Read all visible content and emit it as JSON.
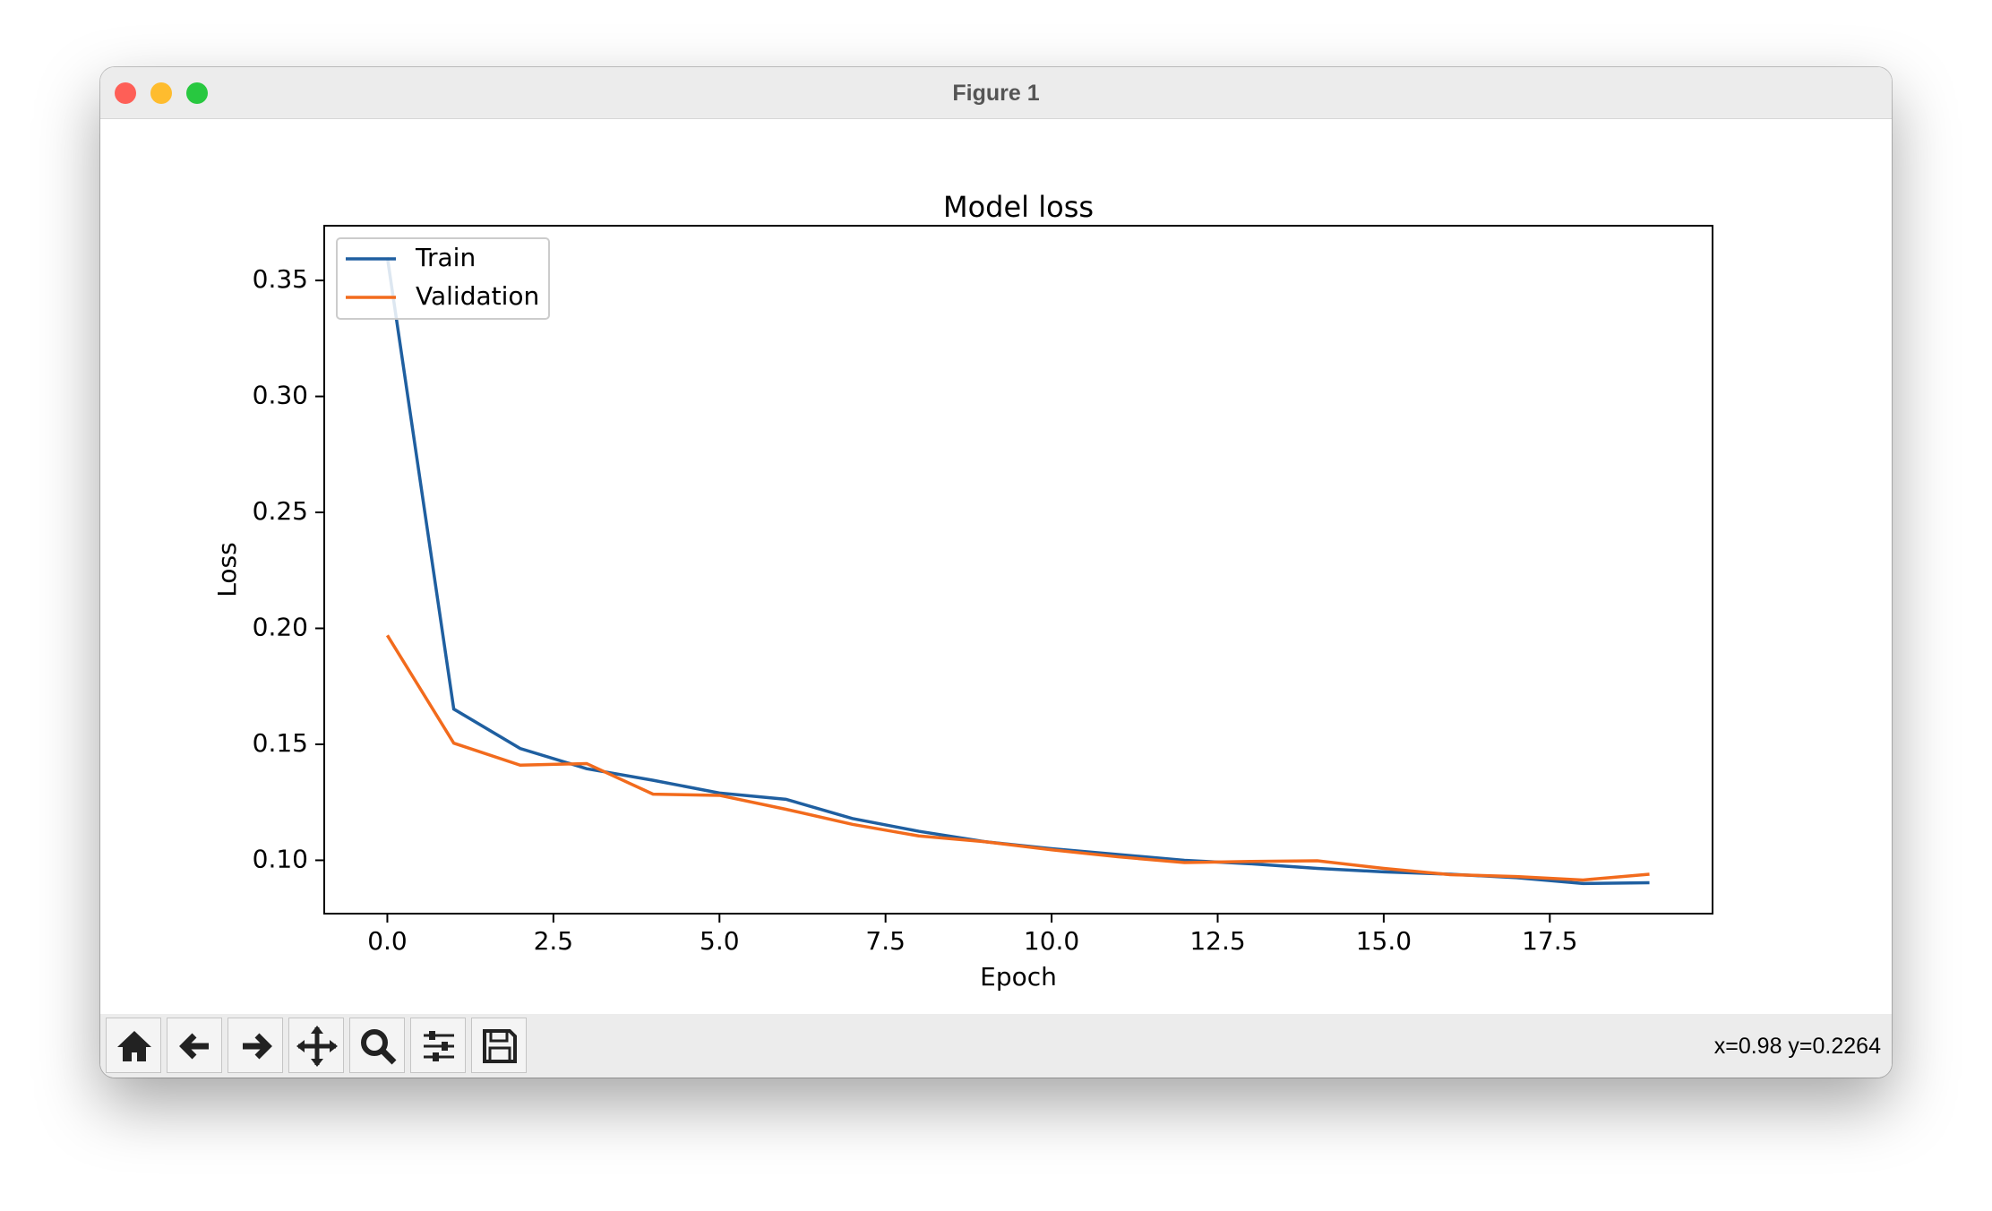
{
  "window": {
    "title": "Figure 1",
    "status": "x=0.98 y=0.2264"
  },
  "chart_data": {
    "type": "line",
    "title": "Model loss",
    "x_label": "Epoch",
    "y_label": "Loss",
    "x": [
      0,
      1,
      2,
      3,
      4,
      5,
      6,
      7,
      8,
      9,
      10,
      11,
      12,
      13,
      14,
      15,
      16,
      17,
      18,
      19
    ],
    "series": [
      {
        "name": "Train",
        "color": "#1f5fa0",
        "values": [
          0.36,
          0.1652,
          0.1482,
          0.1395,
          0.1345,
          0.129,
          0.1263,
          0.118,
          0.1125,
          0.108,
          0.105,
          0.1025,
          0.1,
          0.0985,
          0.0965,
          0.095,
          0.094,
          0.0925,
          0.09,
          0.0903
        ]
      },
      {
        "name": "Validation",
        "color": "#f26b1d",
        "values": [
          0.197,
          0.1505,
          0.141,
          0.1417,
          0.1285,
          0.128,
          0.122,
          0.1155,
          0.1105,
          0.108,
          0.1045,
          0.1015,
          0.099,
          0.0995,
          0.0998,
          0.0965,
          0.0938,
          0.093,
          0.0915,
          0.094
        ]
      }
    ],
    "xlim": [
      -0.95,
      19.95
    ],
    "ylim": [
      0.077,
      0.3736
    ],
    "xticks": [
      {
        "value": 0,
        "label": "0.0"
      },
      2.5,
      {
        "value": 5,
        "label": "5.0"
      },
      7.5,
      {
        "value": 10,
        "label": "10.0"
      },
      12.5,
      {
        "value": 15,
        "label": "15.0"
      },
      17.5
    ],
    "yticks": [
      {
        "value": 0.1,
        "label": "0.10"
      },
      0.15,
      {
        "value": 0.2,
        "label": "0.20"
      },
      0.25,
      {
        "value": 0.3,
        "label": "0.30"
      },
      0.35
    ],
    "legend": "upper left",
    "grid": false
  }
}
